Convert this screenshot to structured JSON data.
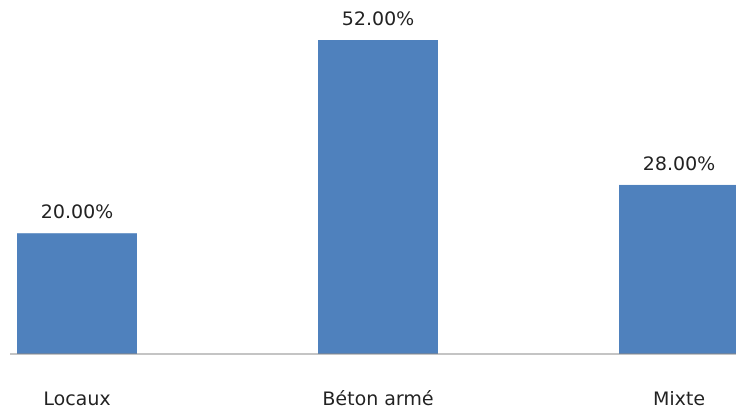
{
  "chart_data": {
    "type": "bar",
    "categories": [
      "Locaux",
      "Béton armé",
      "Mixte"
    ],
    "values": [
      20.0,
      52.0,
      28.0
    ],
    "value_labels": [
      "20.00%",
      "52.00%",
      "28.00%"
    ],
    "title": "",
    "xlabel": "",
    "ylabel": "",
    "ylim": [
      0,
      52
    ],
    "grid": false,
    "legend": "none",
    "bar_color": "#4f81bd",
    "axis_color": "#888888"
  }
}
